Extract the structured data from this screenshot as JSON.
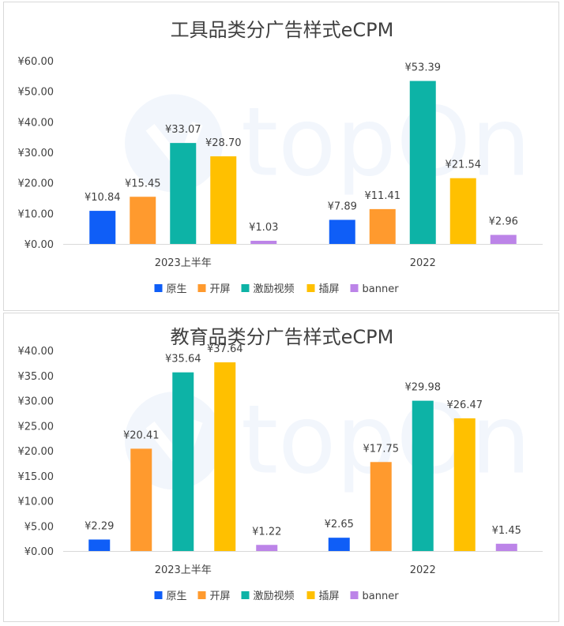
{
  "chart_data": [
    {
      "type": "bar",
      "title": "工具品类分广告样式eCPM",
      "categories": [
        "2023上半年",
        "2022"
      ],
      "series": [
        {
          "name": "原生",
          "values": [
            10.84,
            7.89
          ],
          "labels": [
            "¥10.84",
            "¥7.89"
          ]
        },
        {
          "name": "开屏",
          "values": [
            15.45,
            11.41
          ],
          "labels": [
            "¥15.45",
            "¥11.41"
          ]
        },
        {
          "name": "激励视频",
          "values": [
            33.07,
            53.39
          ],
          "labels": [
            "¥33.07",
            "¥53.39"
          ]
        },
        {
          "name": "插屏",
          "values": [
            28.7,
            21.54
          ],
          "labels": [
            "¥28.70",
            "¥21.54"
          ]
        },
        {
          "name": "banner",
          "values": [
            1.03,
            2.96
          ],
          "labels": [
            "¥1.03",
            "¥2.96"
          ]
        }
      ],
      "ylim": [
        0,
        60
      ],
      "yticks": [
        0,
        10,
        20,
        30,
        40,
        50,
        60
      ],
      "ytick_labels": [
        "¥0.00",
        "¥10.00",
        "¥20.00",
        "¥30.00",
        "¥40.00",
        "¥50.00",
        "¥60.00"
      ],
      "grid": false,
      "legend": "bottom",
      "watermark": "topOn"
    },
    {
      "type": "bar",
      "title": "教育品类分广告样式eCPM",
      "categories": [
        "2023上半年",
        "2022"
      ],
      "series": [
        {
          "name": "原生",
          "values": [
            2.29,
            2.65
          ],
          "labels": [
            "¥2.29",
            "¥2.65"
          ]
        },
        {
          "name": "开屏",
          "values": [
            20.41,
            17.75
          ],
          "labels": [
            "¥20.41",
            "¥17.75"
          ]
        },
        {
          "name": "激励视频",
          "values": [
            35.64,
            29.98
          ],
          "labels": [
            "¥35.64",
            "¥29.98"
          ]
        },
        {
          "name": "插屏",
          "values": [
            37.64,
            26.47
          ],
          "labels": [
            "¥37.64",
            "¥26.47"
          ]
        },
        {
          "name": "banner",
          "values": [
            1.22,
            1.45
          ],
          "labels": [
            "¥1.22",
            "¥1.45"
          ]
        }
      ],
      "ylim": [
        0,
        40
      ],
      "yticks": [
        0,
        5,
        10,
        15,
        20,
        25,
        30,
        35,
        40
      ],
      "ytick_labels": [
        "¥0.00",
        "¥5.00",
        "¥10.00",
        "¥15.00",
        "¥20.00",
        "¥25.00",
        "¥30.00",
        "¥35.00",
        "¥40.00"
      ],
      "grid": false,
      "legend": "bottom",
      "watermark": "topOn"
    }
  ],
  "colors": {
    "原生": "#0F5EF7",
    "开屏": "#FF9A2E",
    "激励视频": "#0DB3A6",
    "插屏": "#FFC000",
    "banner": "#BC84E8"
  }
}
